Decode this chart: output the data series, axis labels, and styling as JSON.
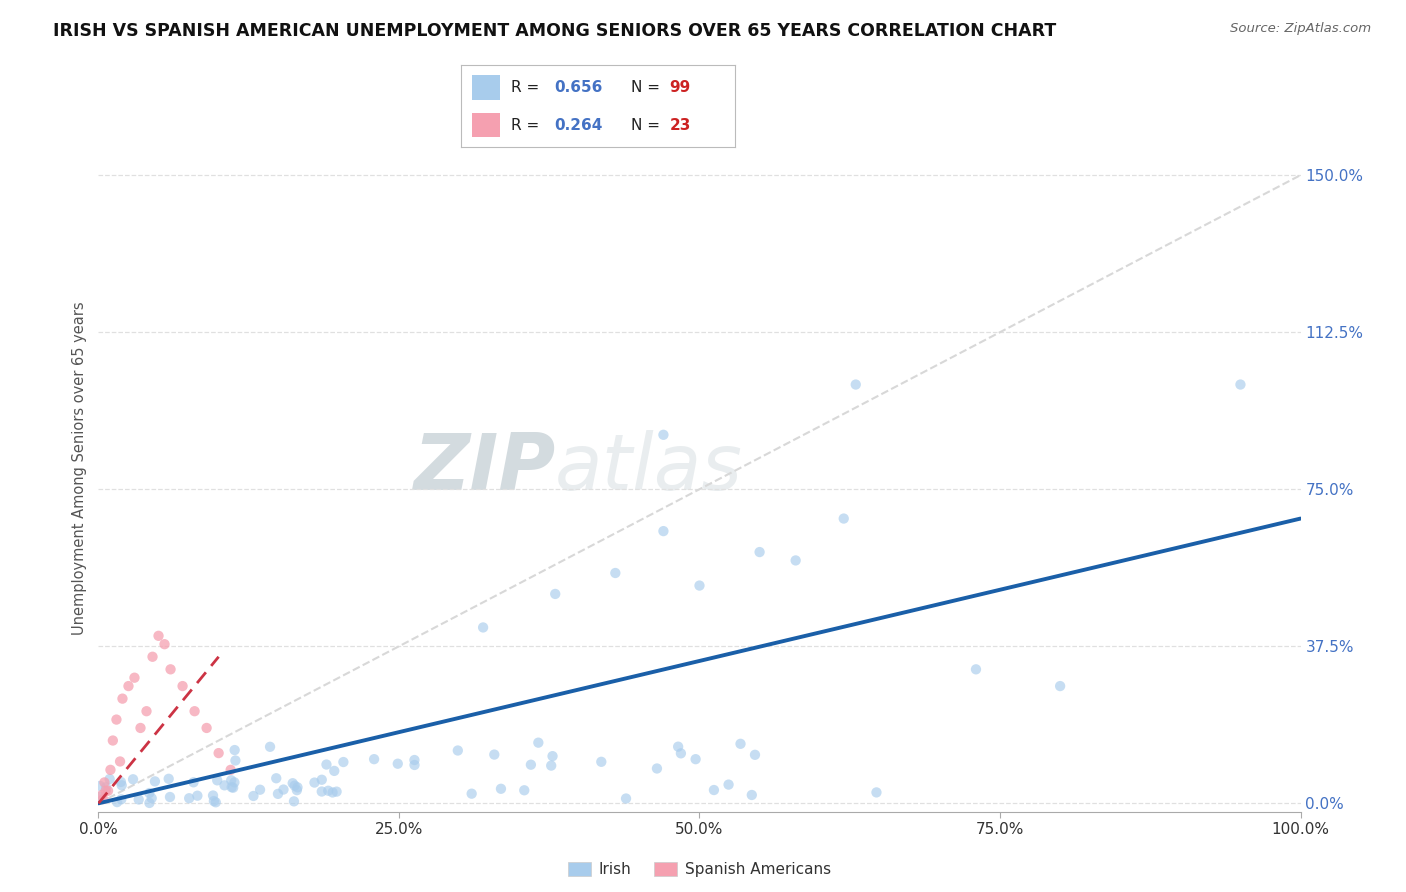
{
  "title": "IRISH VS SPANISH AMERICAN UNEMPLOYMENT AMONG SENIORS OVER 65 YEARS CORRELATION CHART",
  "source": "Source: ZipAtlas.com",
  "ylabel": "Unemployment Among Seniors over 65 years",
  "xlim": [
    0,
    100
  ],
  "ylim": [
    -2,
    162
  ],
  "xticks": [
    0,
    25,
    50,
    75,
    100
  ],
  "xticklabels": [
    "0.0%",
    "25.0%",
    "50.0%",
    "75.0%",
    "100.0%"
  ],
  "yticks": [
    0,
    37.5,
    75,
    112.5,
    150
  ],
  "yticklabels": [
    "0.0%",
    "37.5%",
    "75.0%",
    "112.5%",
    "150.0%"
  ],
  "irish_color": "#a8ccec",
  "spanish_color": "#f5a0b0",
  "irish_line_color": "#1a5fa8",
  "spanish_line_color": "#cc3344",
  "irish_R": "R = 0.656",
  "irish_N": "N = 99",
  "spanish_R": "R = 0.264",
  "spanish_N": "N = 23",
  "watermark_zip": "ZIP",
  "watermark_atlas": "atlas",
  "ref_line_color": "#d8d8d8",
  "background_color": "#ffffff",
  "grid_color": "#e0e0e0",
  "ytick_color": "#4472c4",
  "irish_trend_x": [
    0,
    100
  ],
  "irish_trend_y": [
    0,
    68
  ],
  "spanish_trend_x": [
    0,
    10
  ],
  "spanish_trend_y": [
    0,
    35
  ]
}
